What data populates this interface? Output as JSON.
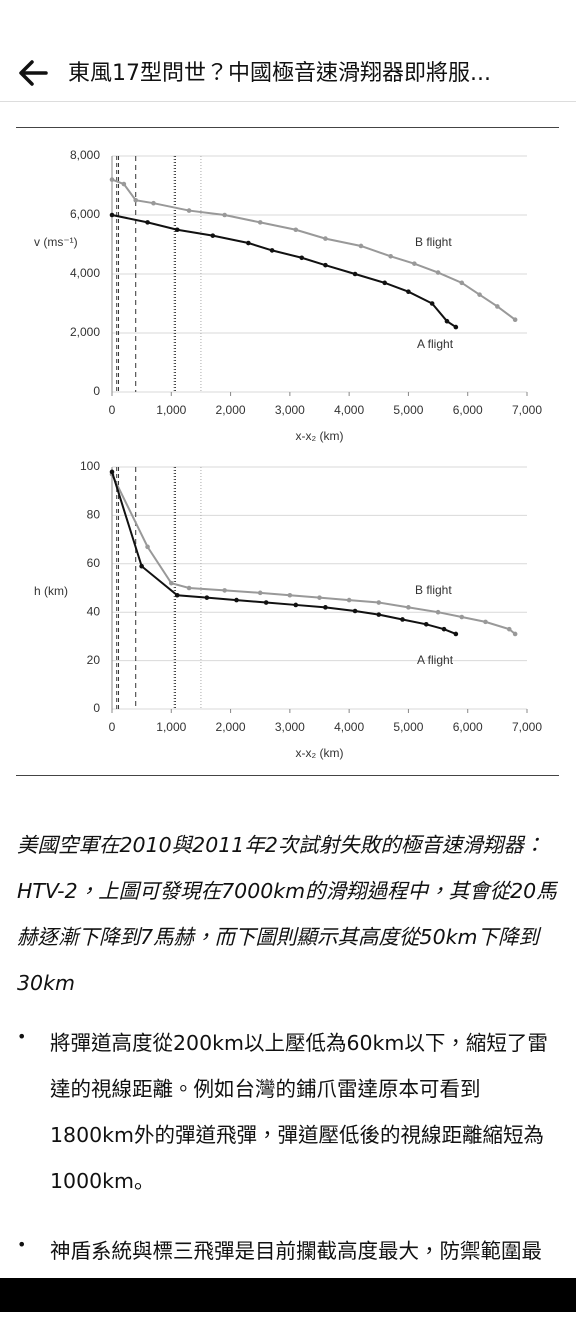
{
  "header": {
    "title": "東風17型問世？中國極音速滑翔器即將服..."
  },
  "chart_data": [
    {
      "type": "line",
      "xlabel": "x-x₂ (km)",
      "ylabel": "v (ms⁻¹)",
      "xlim": [
        0,
        7000
      ],
      "ylim": [
        0,
        8000
      ],
      "xticks": [
        0,
        {
          "value": 1000,
          "label": "1,000"
        },
        {
          "value": 2000,
          "label": "2,000"
        },
        {
          "value": 3000,
          "label": "3,000"
        },
        {
          "value": 4000,
          "label": "4,000"
        },
        {
          "value": 5000,
          "label": "5,000"
        },
        {
          "value": 6000,
          "label": "6,000"
        },
        {
          "value": 7000,
          "label": "7,000"
        }
      ],
      "yticks": [
        0,
        {
          "value": 2000,
          "label": "2,000"
        },
        {
          "value": 4000,
          "label": "4,000"
        },
        {
          "value": 6000,
          "label": "6,000"
        },
        {
          "value": 8000,
          "label": "8,000"
        }
      ],
      "grid": true,
      "series": [
        {
          "name": "B flight",
          "color": "#999999",
          "x": [
            0,
            200,
            400,
            700,
            1300,
            1900,
            2500,
            3100,
            3600,
            4200,
            4700,
            5100,
            5500,
            5900,
            6200,
            6500,
            6800
          ],
          "values": [
            7200,
            7050,
            6500,
            6400,
            6150,
            6000,
            5750,
            5500,
            5200,
            4950,
            4600,
            4350,
            4050,
            3700,
            3300,
            2900,
            2450
          ]
        },
        {
          "name": "A flight",
          "color": "#111111",
          "x": [
            0,
            600,
            1100,
            1700,
            2300,
            2700,
            3200,
            3600,
            4100,
            4600,
            5000,
            5400,
            5650,
            5800
          ],
          "values": [
            6000,
            5750,
            5500,
            5300,
            5050,
            4800,
            4550,
            4300,
            4000,
            3700,
            3400,
            3000,
            2400,
            2200
          ]
        }
      ]
    },
    {
      "type": "line",
      "xlabel": "x-x₂ (km)",
      "ylabel": "h (km)",
      "xlim": [
        0,
        7000
      ],
      "ylim": [
        0,
        100
      ],
      "xticks": [
        0,
        {
          "value": 1000,
          "label": "1,000"
        },
        {
          "value": 2000,
          "label": "2,000"
        },
        {
          "value": 3000,
          "label": "3,000"
        },
        {
          "value": 4000,
          "label": "4,000"
        },
        {
          "value": 5000,
          "label": "5,000"
        },
        {
          "value": 6000,
          "label": "6,000"
        },
        {
          "value": 7000,
          "label": "7,000"
        }
      ],
      "yticks": [
        0,
        20,
        40,
        60,
        80,
        100
      ],
      "grid": true,
      "series": [
        {
          "name": "B flight",
          "color": "#999999",
          "x": [
            0,
            600,
            1000,
            1300,
            1900,
            2500,
            3000,
            3500,
            4000,
            4500,
            5000,
            5500,
            5900,
            6300,
            6700,
            6800
          ],
          "values": [
            97,
            67,
            52,
            50,
            49,
            48,
            47,
            46,
            45,
            44,
            42,
            40,
            38,
            36,
            33,
            31
          ]
        },
        {
          "name": "A flight",
          "color": "#111111",
          "x": [
            0,
            500,
            1100,
            1600,
            2100,
            2600,
            3100,
            3600,
            4100,
            4500,
            4900,
            5300,
            5600,
            5800
          ],
          "values": [
            98,
            59,
            47,
            46,
            45,
            44,
            43,
            42,
            40.5,
            39,
            37,
            35,
            33,
            31
          ]
        }
      ]
    }
  ],
  "caption": "美國空軍在2010與2011年2次試射失敗的極音速滑翔器：HTV-2，上圖可發現在7000km的滑翔過程中，其會從20馬赫逐漸下降到7馬赫，而下圖則顯示其高度從50km下降到30km",
  "bullets": [
    "將彈道高度從200km以上壓低為60km以下，縮短了雷達的視線距離。例如台灣的鋪爪雷達原本可看到1800km外的彈道飛彈，彈道壓低後的視線距離縮短為1000km。",
    "神盾系統與標三飛彈是目前攔截高度最大，防禦範圍最廣的戰區彈道防禦系統，但由於標三飛彈"
  ]
}
